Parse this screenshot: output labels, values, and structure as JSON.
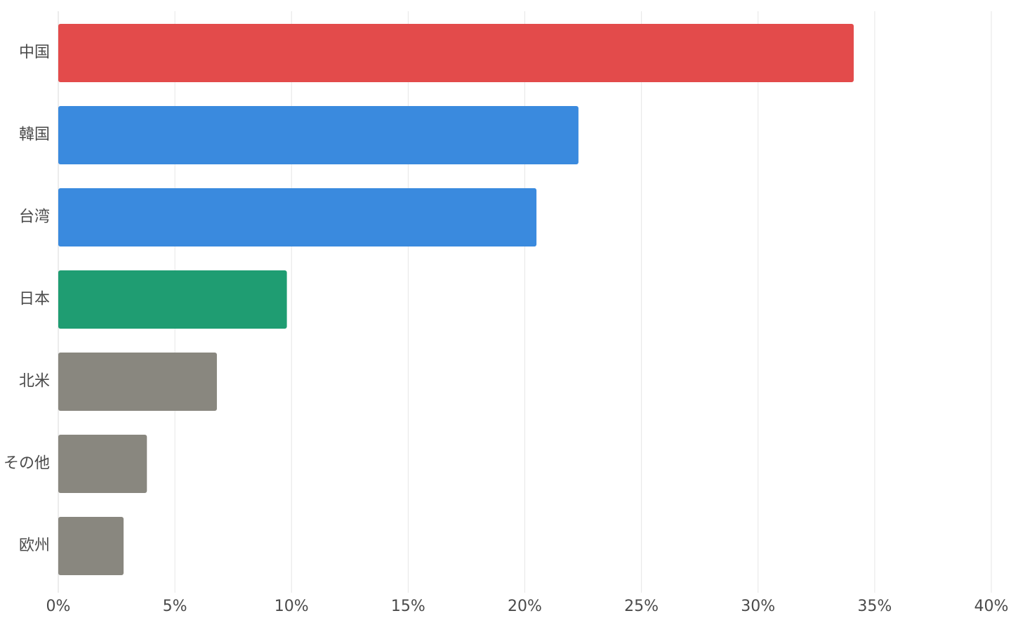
{
  "chart_data": {
    "type": "bar",
    "orientation": "horizontal",
    "title": "",
    "xlabel": "",
    "ylabel": "",
    "categories": [
      "中国",
      "韓国",
      "台湾",
      "日本",
      "北米",
      "その他",
      "欧州"
    ],
    "values": [
      34.1,
      22.3,
      20.5,
      9.8,
      6.8,
      3.8,
      2.8
    ],
    "bar_colors": [
      "#e34b4b",
      "#3a8ade",
      "#3a8ade",
      "#1f9d72",
      "#89877f",
      "#89877f",
      "#89877f"
    ],
    "xlim": [
      0,
      40
    ],
    "x_ticks": [
      0,
      5,
      10,
      15,
      20,
      25,
      30,
      35,
      40
    ],
    "x_tick_labels": [
      "0%",
      "5%",
      "10%",
      "15%",
      "20%",
      "25%",
      "30%",
      "35%",
      "40%"
    ],
    "grid": true,
    "legend": "none"
  }
}
